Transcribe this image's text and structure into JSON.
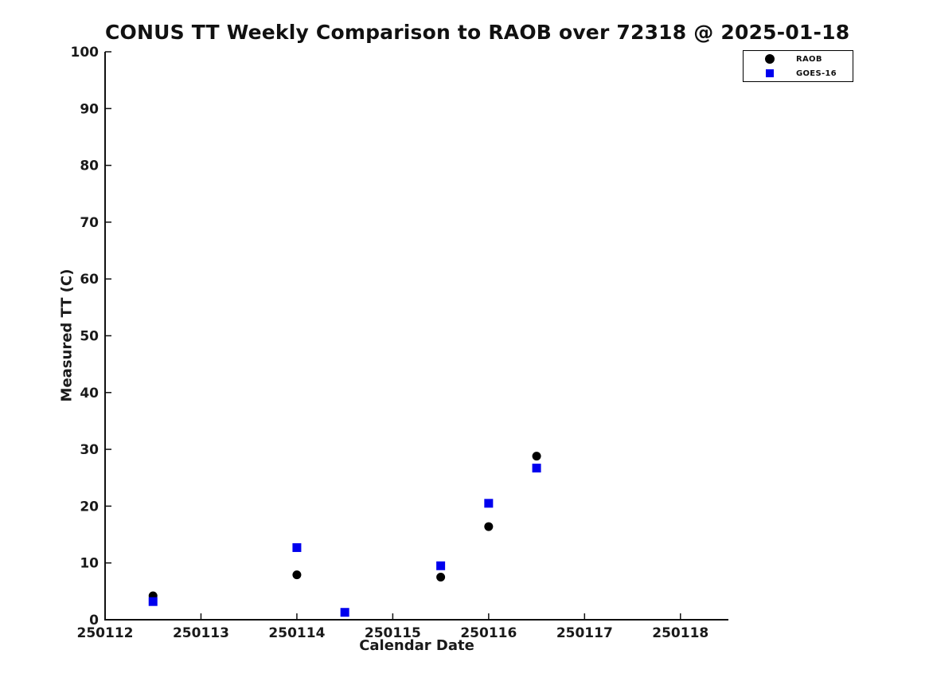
{
  "chart_data": {
    "type": "scatter",
    "title": "CONUS TT Weekly Comparison to RAOB over 72318 @ 2025-01-18",
    "xlabel": "Calendar Date",
    "ylabel": "Measured TT (C)",
    "xlim": [
      250112,
      250118.5
    ],
    "ylim": [
      0,
      100
    ],
    "xticks": [
      250112,
      250113,
      250114,
      250115,
      250116,
      250117,
      250118
    ],
    "yticks": [
      0,
      10,
      20,
      30,
      40,
      50,
      60,
      70,
      80,
      90,
      100
    ],
    "grid": false,
    "legend_position": "top-right",
    "axis_color": "#111111",
    "tick_label_color": "#1a1a1a",
    "background_color": "#ffffff",
    "series": [
      {
        "name": "RAOB",
        "marker": "circle",
        "color": "#000000",
        "points": [
          [
            250112.5,
            4.2
          ],
          [
            250114.0,
            7.9
          ],
          [
            250115.5,
            7.5
          ],
          [
            250116.0,
            16.4
          ],
          [
            250116.5,
            28.8
          ]
        ]
      },
      {
        "name": "GOES-16",
        "marker": "square",
        "color": "#0000ee",
        "points": [
          [
            250112.5,
            3.2
          ],
          [
            250114.0,
            12.7
          ],
          [
            250114.5,
            1.3
          ],
          [
            250115.5,
            9.5
          ],
          [
            250116.0,
            20.5
          ],
          [
            250116.5,
            26.7
          ]
        ]
      }
    ]
  }
}
